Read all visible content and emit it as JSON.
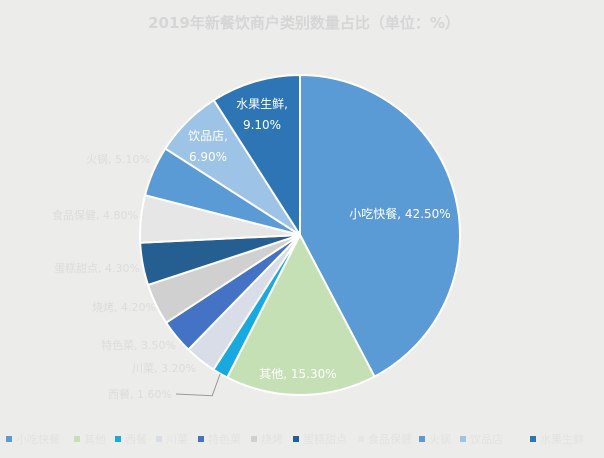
{
  "chart_data": {
    "type": "pie",
    "title": "2019年新餐饮商户类别数量占比（单位：%）",
    "slices": [
      {
        "name": "小吃快餐",
        "value": 42.5,
        "label": "小吃快餐, 42.50%",
        "color": "#5b9bd5",
        "label_style": "inside"
      },
      {
        "name": "其他",
        "value": 15.3,
        "label": "其他, 15.30%",
        "color": "#c5e0b4",
        "label_style": "inside"
      },
      {
        "name": "西餐",
        "value": 1.6,
        "label": "西餐, 1.60%",
        "color": "#17a9e0",
        "label_style": "outside"
      },
      {
        "name": "川菜",
        "value": 3.2,
        "label": "川菜, 3.20%",
        "color": "#d9dde8",
        "label_style": "outside"
      },
      {
        "name": "特色菜",
        "value": 3.5,
        "label": "特色菜, 3.50%",
        "color": "#4472c4",
        "label_style": "outside"
      },
      {
        "name": "烧烤",
        "value": 4.2,
        "label": "烧烤, 4.20%",
        "color": "#d0d0d0",
        "label_style": "outside"
      },
      {
        "name": "蛋糕甜点",
        "value": 4.3,
        "label": "蛋糕甜点, 4.30%",
        "color": "#255e91",
        "label_style": "outside"
      },
      {
        "name": "食品保健",
        "value": 4.8,
        "label": "食品保健, 4.80%",
        "color": "#e7e6e6",
        "label_style": "outside"
      },
      {
        "name": "火锅",
        "value": 5.1,
        "label": "火锅, 5.10%",
        "color": "#5b9bd5",
        "label_style": "outside"
      },
      {
        "name": "饮品店",
        "value": 6.9,
        "label": "饮品店, 6.90%",
        "color": "#9dc3e6",
        "label_style": "inside"
      },
      {
        "name": "水果生鲜",
        "value": 9.1,
        "label": "水果生鲜, 9.10%",
        "color": "#2e75b6",
        "label_style": "inside"
      }
    ],
    "legend": {
      "position": "bottom",
      "entries": [
        "小吃快餐",
        "其他",
        "西餐",
        "川菜",
        "特色菜",
        "烧烤",
        "蛋糕甜点",
        "食品保健",
        "火锅",
        "饮品店",
        "水果生鲜"
      ]
    }
  }
}
